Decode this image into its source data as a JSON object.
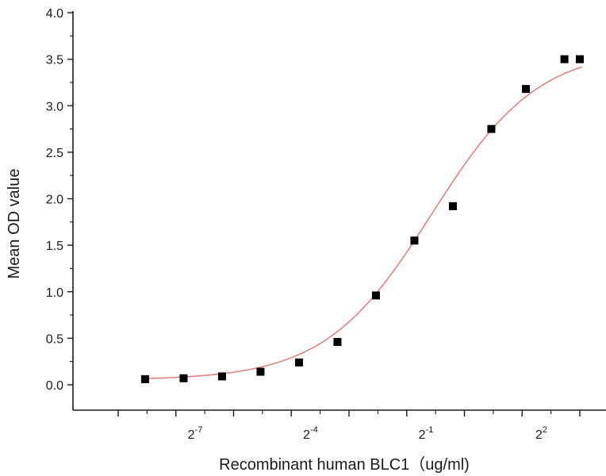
{
  "chart_data": {
    "type": "scatter",
    "xlabel": "Recombinant human BLC1（ug/ml)",
    "ylabel": "Mean OD value",
    "x_scale": "log2",
    "ylim": [
      -0.15,
      4.0
    ],
    "yticks": [
      {
        "value": 0.0,
        "label": "0.0"
      },
      {
        "value": 0.5,
        "label": "0.5"
      },
      {
        "value": 1.0,
        "label": "1.0"
      },
      {
        "value": 1.5,
        "label": "1.5"
      },
      {
        "value": 2.0,
        "label": "2.0"
      },
      {
        "value": 2.5,
        "label": "2.5"
      },
      {
        "value": 3.0,
        "label": "3.0"
      },
      {
        "value": 3.5,
        "label": "3.5"
      },
      {
        "value": 4.0,
        "label": "4.0"
      }
    ],
    "xticks_major": [
      {
        "exp": -7,
        "base": "2",
        "sup": "-7"
      },
      {
        "exp": -4,
        "base": "2",
        "sup": "-4"
      },
      {
        "exp": -1,
        "base": "2",
        "sup": "-1"
      },
      {
        "exp": 2,
        "base": "2",
        "sup": "2"
      }
    ],
    "xlim_exp": [
      -9.0,
      3.0
    ],
    "points": [
      {
        "x_exp": -8.3,
        "y": 0.06
      },
      {
        "x_exp": -7.3,
        "y": 0.07
      },
      {
        "x_exp": -6.3,
        "y": 0.09
      },
      {
        "x_exp": -5.3,
        "y": 0.14
      },
      {
        "x_exp": -4.3,
        "y": 0.24
      },
      {
        "x_exp": -3.3,
        "y": 0.46
      },
      {
        "x_exp": -2.3,
        "y": 0.96
      },
      {
        "x_exp": -1.3,
        "y": 1.55
      },
      {
        "x_exp": -0.3,
        "y": 1.92
      },
      {
        "x_exp": 0.7,
        "y": 2.75
      },
      {
        "x_exp": 1.6,
        "y": 3.18
      },
      {
        "x_exp": 2.6,
        "y": 3.5
      },
      {
        "x_exp": 3.0,
        "y": 3.5
      }
    ],
    "fit_curve": {
      "model": "4PL",
      "bottom": 0.05,
      "top": 3.62,
      "midpoint_exp": -0.85,
      "slope_per_exp": 0.72,
      "x_start_exp": -8.3,
      "x_end_exp": 3.05
    },
    "colors": {
      "marker": "#000000",
      "fit": "#e07b7b",
      "axis": "#1a1a1a"
    }
  }
}
